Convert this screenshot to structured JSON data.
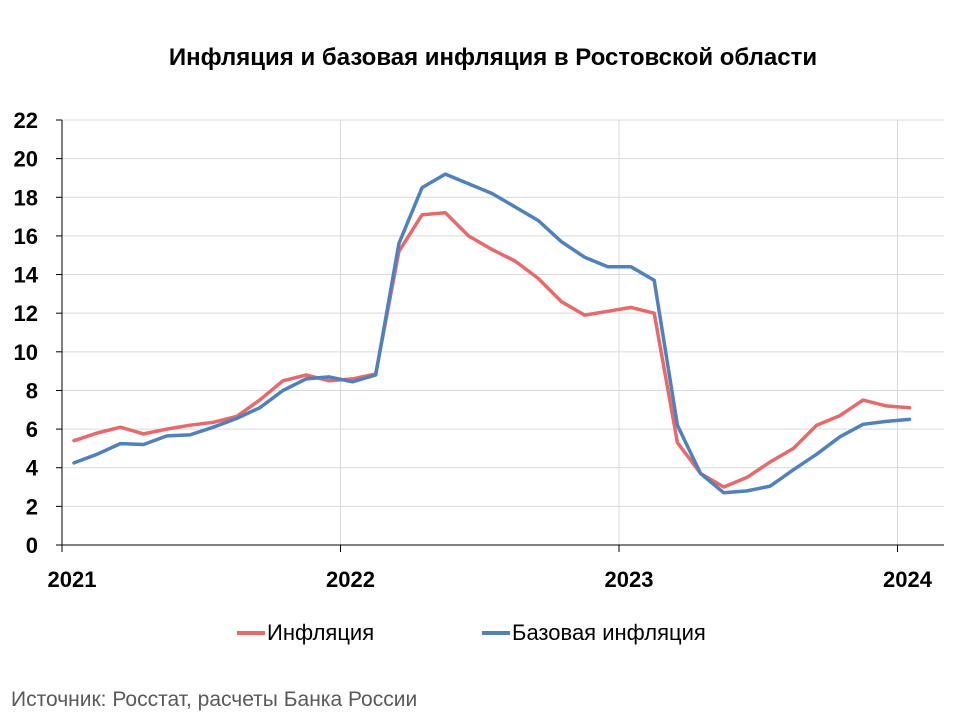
{
  "chart_data": {
    "type": "line",
    "title": "Инфляция и базовая инфляция в Ростовской области",
    "xlabel": "",
    "ylabel": "",
    "ylim": [
      0,
      22
    ],
    "yticks": [
      "0",
      "2",
      "4",
      "6",
      "8",
      "10",
      "12",
      "14",
      "16",
      "18",
      "20",
      "22"
    ],
    "xticks": [
      "2021",
      "2022",
      "2023",
      "2024"
    ],
    "x": [
      "2021-01",
      "2021-02",
      "2021-03",
      "2021-04",
      "2021-05",
      "2021-06",
      "2021-07",
      "2021-08",
      "2021-09",
      "2021-10",
      "2021-11",
      "2021-12",
      "2022-01",
      "2022-02",
      "2022-03",
      "2022-04",
      "2022-05",
      "2022-06",
      "2022-07",
      "2022-08",
      "2022-09",
      "2022-10",
      "2022-11",
      "2022-12",
      "2023-01",
      "2023-02",
      "2023-03",
      "2023-04",
      "2023-05",
      "2023-06",
      "2023-07",
      "2023-08",
      "2023-09",
      "2023-10",
      "2023-11",
      "2023-12",
      "2024-01"
    ],
    "series": [
      {
        "name": "Инфляция",
        "color": "#E8696A",
        "values": [
          5.4,
          5.8,
          6.1,
          5.75,
          6.0,
          6.2,
          6.35,
          6.65,
          7.5,
          8.5,
          8.8,
          8.5,
          8.6,
          8.85,
          15.2,
          17.1,
          17.2,
          16.0,
          15.3,
          14.7,
          13.8,
          12.6,
          11.9,
          12.1,
          12.3,
          12.0,
          5.3,
          3.7,
          3.0,
          3.5,
          4.3,
          5.0,
          6.2,
          6.7,
          7.5,
          7.2,
          7.1
        ]
      },
      {
        "name": "Базовая инфляция",
        "color": "#4F81BD",
        "values": [
          4.25,
          4.7,
          5.25,
          5.2,
          5.65,
          5.7,
          6.1,
          6.55,
          7.1,
          8.0,
          8.6,
          8.7,
          8.45,
          8.8,
          15.6,
          18.5,
          19.2,
          18.7,
          18.2,
          17.5,
          16.8,
          15.7,
          14.9,
          14.4,
          14.4,
          13.7,
          6.2,
          3.7,
          2.7,
          2.8,
          3.05,
          3.9,
          4.7,
          5.6,
          6.25,
          6.4,
          6.5
        ]
      }
    ],
    "grid": true,
    "legend_position": "bottom"
  },
  "source_note": "Источник: Росстат, расчеты Банка России"
}
